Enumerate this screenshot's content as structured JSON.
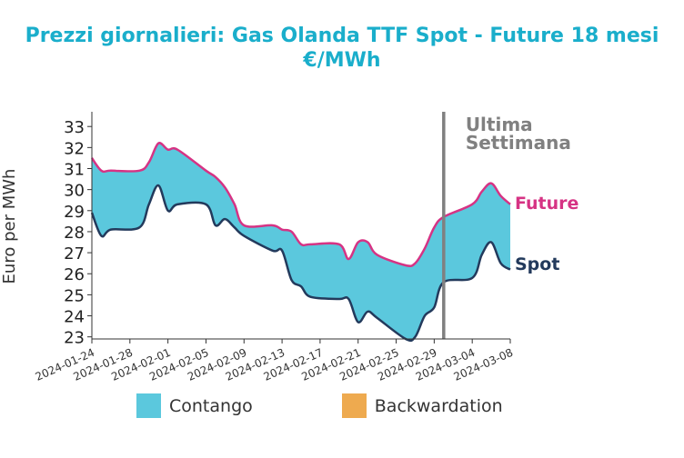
{
  "header": {
    "title_line1": "Prezzi giornalieri: Gas Olanda TTF Spot - Future 18 mesi",
    "title_line2": "€/MWh"
  },
  "legend": [
    {
      "label": "Contango",
      "color": "#5bc8dd"
    },
    {
      "label": "Backwardation",
      "color": "#eeaa4f"
    }
  ],
  "colors": {
    "future": "#d63384",
    "spot": "#233a5c",
    "fill": "#5bc8dd",
    "marker": "#808080",
    "axis": "#333333"
  },
  "chart_data": {
    "type": "area",
    "ylabel": "Euro per MWh",
    "ylim": [
      22.9,
      33.7
    ],
    "yticks": [
      23,
      24,
      25,
      26,
      27,
      28,
      29,
      30,
      31,
      32,
      33
    ],
    "xticks": [
      "2024-01-24",
      "2024-01-28",
      "2024-02-01",
      "2024-02-05",
      "2024-02-09",
      "2024-02-13",
      "2024-02-17",
      "2024-02-21",
      "2024-02-25",
      "2024-02-29",
      "2024-03-04",
      "2024-03-08"
    ],
    "marker": {
      "date": "2024-03-01",
      "label_line1": "Ultima",
      "label_line2": "Settimana"
    },
    "series": [
      {
        "name": "Future",
        "label": "Future",
        "points": [
          [
            "2024-01-24",
            31.5
          ],
          [
            "2024-01-25",
            30.9
          ],
          [
            "2024-01-26",
            30.9
          ],
          [
            "2024-01-29",
            30.9
          ],
          [
            "2024-01-30",
            31.3
          ],
          [
            "2024-01-31",
            32.2
          ],
          [
            "2024-02-01",
            31.9
          ],
          [
            "2024-02-02",
            31.9
          ],
          [
            "2024-02-05",
            30.9
          ],
          [
            "2024-02-06",
            30.6
          ],
          [
            "2024-02-07",
            30.1
          ],
          [
            "2024-02-08",
            29.3
          ],
          [
            "2024-02-09",
            28.3
          ],
          [
            "2024-02-12",
            28.3
          ],
          [
            "2024-02-13",
            28.1
          ],
          [
            "2024-02-14",
            28.0
          ],
          [
            "2024-02-15",
            27.4
          ],
          [
            "2024-02-16",
            27.4
          ],
          [
            "2024-02-19",
            27.4
          ],
          [
            "2024-02-20",
            26.7
          ],
          [
            "2024-02-21",
            27.5
          ],
          [
            "2024-02-22",
            27.5
          ],
          [
            "2024-02-23",
            26.9
          ],
          [
            "2024-02-26",
            26.4
          ],
          [
            "2024-02-27",
            26.5
          ],
          [
            "2024-02-28",
            27.2
          ],
          [
            "2024-02-29",
            28.2
          ],
          [
            "2024-03-01",
            28.7
          ],
          [
            "2024-03-04",
            29.3
          ],
          [
            "2024-03-05",
            29.9
          ],
          [
            "2024-03-06",
            30.3
          ],
          [
            "2024-03-07",
            29.7
          ],
          [
            "2024-03-08",
            29.3
          ]
        ]
      },
      {
        "name": "Spot",
        "label": "Spot",
        "points": [
          [
            "2024-01-24",
            28.9
          ],
          [
            "2024-01-25",
            27.8
          ],
          [
            "2024-01-26",
            28.1
          ],
          [
            "2024-01-29",
            28.2
          ],
          [
            "2024-01-30",
            29.3
          ],
          [
            "2024-01-31",
            30.2
          ],
          [
            "2024-02-01",
            29.0
          ],
          [
            "2024-02-02",
            29.3
          ],
          [
            "2024-02-05",
            29.3
          ],
          [
            "2024-02-06",
            28.3
          ],
          [
            "2024-02-07",
            28.6
          ],
          [
            "2024-02-08",
            28.2
          ],
          [
            "2024-02-09",
            27.8
          ],
          [
            "2024-02-12",
            27.1
          ],
          [
            "2024-02-13",
            27.1
          ],
          [
            "2024-02-14",
            25.7
          ],
          [
            "2024-02-15",
            25.4
          ],
          [
            "2024-02-16",
            24.9
          ],
          [
            "2024-02-19",
            24.8
          ],
          [
            "2024-02-20",
            24.8
          ],
          [
            "2024-02-21",
            23.7
          ],
          [
            "2024-02-22",
            24.2
          ],
          [
            "2024-02-23",
            23.9
          ],
          [
            "2024-02-26",
            22.9
          ],
          [
            "2024-02-27",
            23.0
          ],
          [
            "2024-02-28",
            24.0
          ],
          [
            "2024-02-29",
            24.4
          ],
          [
            "2024-03-01",
            25.6
          ],
          [
            "2024-03-04",
            25.8
          ],
          [
            "2024-03-05",
            26.9
          ],
          [
            "2024-03-06",
            27.5
          ],
          [
            "2024-03-07",
            26.5
          ],
          [
            "2024-03-08",
            26.2
          ]
        ]
      }
    ]
  }
}
